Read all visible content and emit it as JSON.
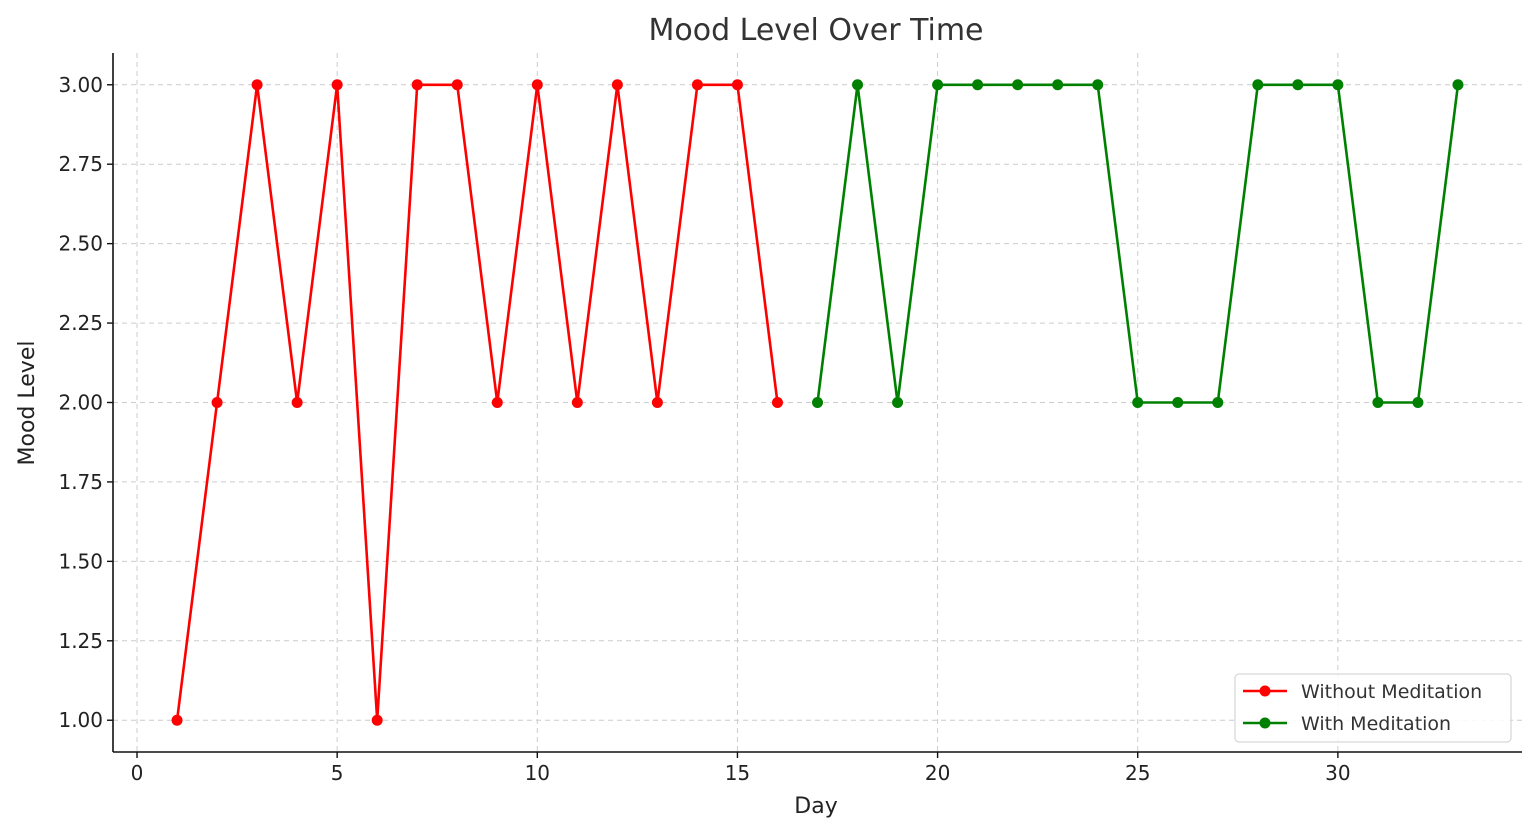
{
  "chart_data": {
    "type": "line",
    "title": "Mood Level Over Time",
    "xlabel": "Day",
    "ylabel": "Mood Level",
    "xlim": [
      -0.6,
      34.6
    ],
    "ylim": [
      0.9,
      3.1
    ],
    "xticks": [
      0,
      5,
      10,
      15,
      20,
      25,
      30
    ],
    "xtick_labels": [
      "0",
      "5",
      "10",
      "15",
      "20",
      "25",
      "30"
    ],
    "yticks": [
      1.0,
      1.25,
      1.5,
      1.75,
      2.0,
      2.25,
      2.5,
      2.75,
      3.0
    ],
    "ytick_labels": [
      "1.00",
      "1.25",
      "1.50",
      "1.75",
      "2.00",
      "2.25",
      "2.50",
      "2.75",
      "3.00"
    ],
    "grid": true,
    "legend_position": "bottom-right",
    "series": [
      {
        "name": "Without Meditation",
        "color": "#ff0000",
        "x": [
          1,
          2,
          3,
          4,
          5,
          6,
          7,
          8,
          9,
          10,
          11,
          12,
          13,
          14,
          15,
          16
        ],
        "y": [
          1,
          2,
          3,
          2,
          3,
          1,
          3,
          3,
          2,
          3,
          2,
          3,
          2,
          3,
          3,
          2
        ]
      },
      {
        "name": "With Meditation",
        "color": "#008000",
        "x": [
          17,
          18,
          19,
          20,
          21,
          22,
          23,
          24,
          25,
          26,
          27,
          28,
          29,
          30,
          31,
          32,
          33
        ],
        "y": [
          2,
          3,
          2,
          3,
          3,
          3,
          3,
          3,
          2,
          2,
          2,
          3,
          3,
          3,
          2,
          2,
          3
        ]
      }
    ]
  }
}
